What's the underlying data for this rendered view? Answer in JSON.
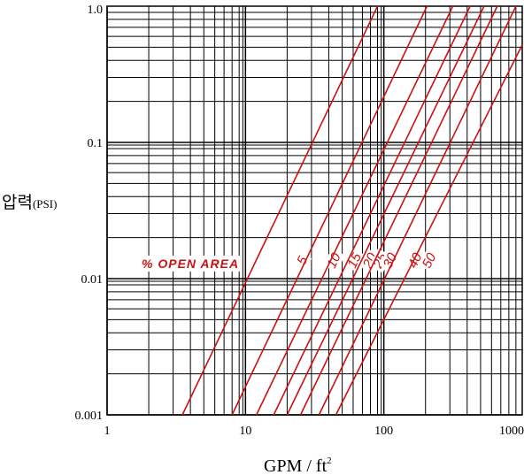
{
  "chart_data": {
    "type": "line",
    "xlabel": "GPM / ft",
    "xlabel_sup": "2",
    "ylabel": "압력",
    "ylabel_unit": "(PSI)",
    "x_scale": "log",
    "y_scale": "log",
    "xlim": [
      1,
      1000
    ],
    "ylim": [
      0.001,
      1.0
    ],
    "x_ticks": [
      {
        "value": 1,
        "label": "1"
      },
      {
        "value": 10,
        "label": "10"
      },
      {
        "value": 100,
        "label": "100"
      },
      {
        "value": 1000,
        "label": "1000"
      }
    ],
    "y_ticks": [
      {
        "value": 1.0,
        "label": "1.0"
      },
      {
        "value": 0.1,
        "label": "0.1"
      },
      {
        "value": 0.01,
        "label": "0.01"
      },
      {
        "value": 0.001,
        "label": "0.001"
      }
    ],
    "grid": true,
    "annotation": "% OPEN AREA",
    "series_color": "#cc1111",
    "series": [
      {
        "name": "5",
        "x": [
          3.5,
          90
        ],
        "y": [
          0.001,
          1.0
        ],
        "label_at": [
          26,
          0.0135
        ]
      },
      {
        "name": "10",
        "x": [
          8.0,
          205
        ],
        "y": [
          0.001,
          1.0
        ],
        "label_at": [
          44,
          0.0135
        ]
      },
      {
        "name": "15",
        "x": [
          12.0,
          315
        ],
        "y": [
          0.001,
          1.0
        ],
        "label_at": [
          62,
          0.0135
        ]
      },
      {
        "name": "20",
        "x": [
          16.0,
          420
        ],
        "y": [
          0.001,
          1.0
        ],
        "label_at": [
          80,
          0.0135
        ]
      },
      {
        "name": "25",
        "x": [
          20.0,
          530
        ],
        "y": [
          0.001,
          1.0
        ],
        "label_at": [
          95,
          0.0135
        ]
      },
      {
        "name": "30",
        "x": [
          25.0,
          660
        ],
        "y": [
          0.001,
          1.0
        ],
        "label_at": [
          112,
          0.0135
        ]
      },
      {
        "name": "40",
        "x": [
          34.0,
          900
        ],
        "y": [
          0.001,
          1.0
        ],
        "label_at": [
          170,
          0.0135
        ]
      },
      {
        "name": "50",
        "x": [
          45.0,
          1000
        ],
        "y": [
          0.001,
          0.52
        ],
        "label_at": [
          215,
          0.0135
        ]
      }
    ]
  }
}
